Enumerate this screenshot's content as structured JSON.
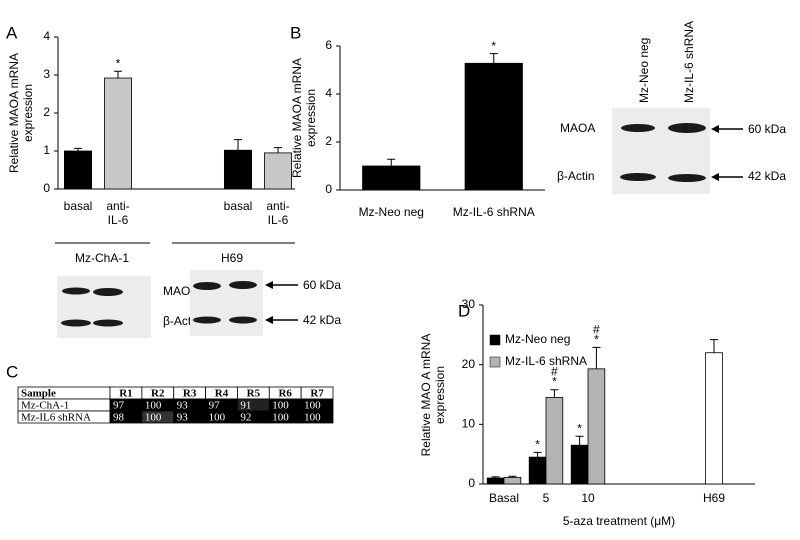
{
  "panels": [
    "A",
    "B",
    "C",
    "D"
  ],
  "chart_data": [
    {
      "type": "bar",
      "ylabel": "Relative MAOA mRNA\nexpression",
      "categories": [
        "basal",
        "anti-\nIL-6",
        null,
        null,
        "basal",
        "anti-\nIL-6"
      ],
      "series": [
        {
          "color": "#000000",
          "values": [
            1.0,
            null,
            null,
            null,
            1.02,
            null
          ],
          "errors": [
            0.07,
            null,
            null,
            null,
            0.28,
            null
          ]
        },
        {
          "color": "#c8c8c8",
          "values": [
            null,
            2.92,
            null,
            null,
            null,
            0.95
          ],
          "errors": [
            null,
            0.18,
            null,
            null,
            null,
            0.14
          ],
          "markers": [
            null,
            "*",
            null,
            null,
            null,
            null
          ]
        }
      ],
      "ylim": [
        0,
        4
      ],
      "yticks": [
        0,
        1,
        2,
        3,
        4
      ]
    },
    {
      "type": "bar",
      "ylabel": "Relative MAOA mRNA\nexpression",
      "categories": [
        "Mz-Neo neg",
        "Mz-IL-6 shRNA"
      ],
      "series": [
        {
          "color": "#000000",
          "values": [
            1.0,
            5.28
          ],
          "errors": [
            0.28,
            0.4
          ],
          "markers": [
            null,
            "*"
          ]
        }
      ],
      "ylim": [
        0,
        6
      ],
      "yticks": [
        0,
        2,
        4,
        6
      ]
    },
    {
      "type": "bar",
      "xlabel": "5-aza treatment (μM)",
      "ylabel": "Relative MAO A mRNA\nexpression",
      "categories": [
        "Basal",
        "5",
        "10",
        null,
        null,
        "H69"
      ],
      "series": [
        {
          "name": "Mz-Neo neg",
          "color": "#000000",
          "values": [
            1.0,
            4.5,
            6.5,
            null,
            null,
            null
          ],
          "errors": [
            0.2,
            0.8,
            1.5,
            null,
            null,
            null
          ],
          "markers": [
            null,
            "*",
            "*",
            null,
            null,
            null
          ]
        },
        {
          "name": "Mz-IL-6 shRNA",
          "color": "#b4b4b4",
          "values": [
            1.1,
            14.5,
            19.3,
            null,
            null,
            null
          ],
          "errors": [
            0.2,
            1.3,
            3.6,
            null,
            null,
            null
          ],
          "markers": [
            null,
            "#\n*",
            "#\n*",
            null,
            null,
            null
          ]
        },
        {
          "color": "#ffffff",
          "values": [
            null,
            null,
            null,
            null,
            null,
            22.0
          ],
          "errors": [
            null,
            null,
            null,
            null,
            null,
            2.2
          ]
        }
      ],
      "ylim": [
        0,
        30
      ],
      "yticks": [
        0,
        10,
        20,
        30
      ],
      "legend": "upper left"
    }
  ],
  "blots": {
    "a": {
      "groups": [
        "Mz-ChA-1",
        "H69"
      ],
      "bands": [
        "MAOA",
        "β-Actin"
      ],
      "sizes": [
        "60 kDa",
        "42 kDa"
      ]
    },
    "b": {
      "lanes": [
        "Mz-Neo neg",
        "Mz-IL-6 shRNA"
      ],
      "bands": [
        "MAOA",
        "β-Actin"
      ],
      "sizes": [
        "60 kDa",
        "42 kDa"
      ]
    }
  },
  "table": {
    "header": [
      "Sample",
      "R1",
      "R2",
      "R3",
      "R4",
      "R5",
      "R6",
      "R7"
    ],
    "rows": [
      [
        "Mz-ChA-1",
        97,
        100,
        93,
        97,
        91,
        100,
        100
      ],
      [
        "Mz-IL6 shRNA",
        98,
        100,
        93,
        100,
        92,
        100,
        100
      ]
    ]
  }
}
